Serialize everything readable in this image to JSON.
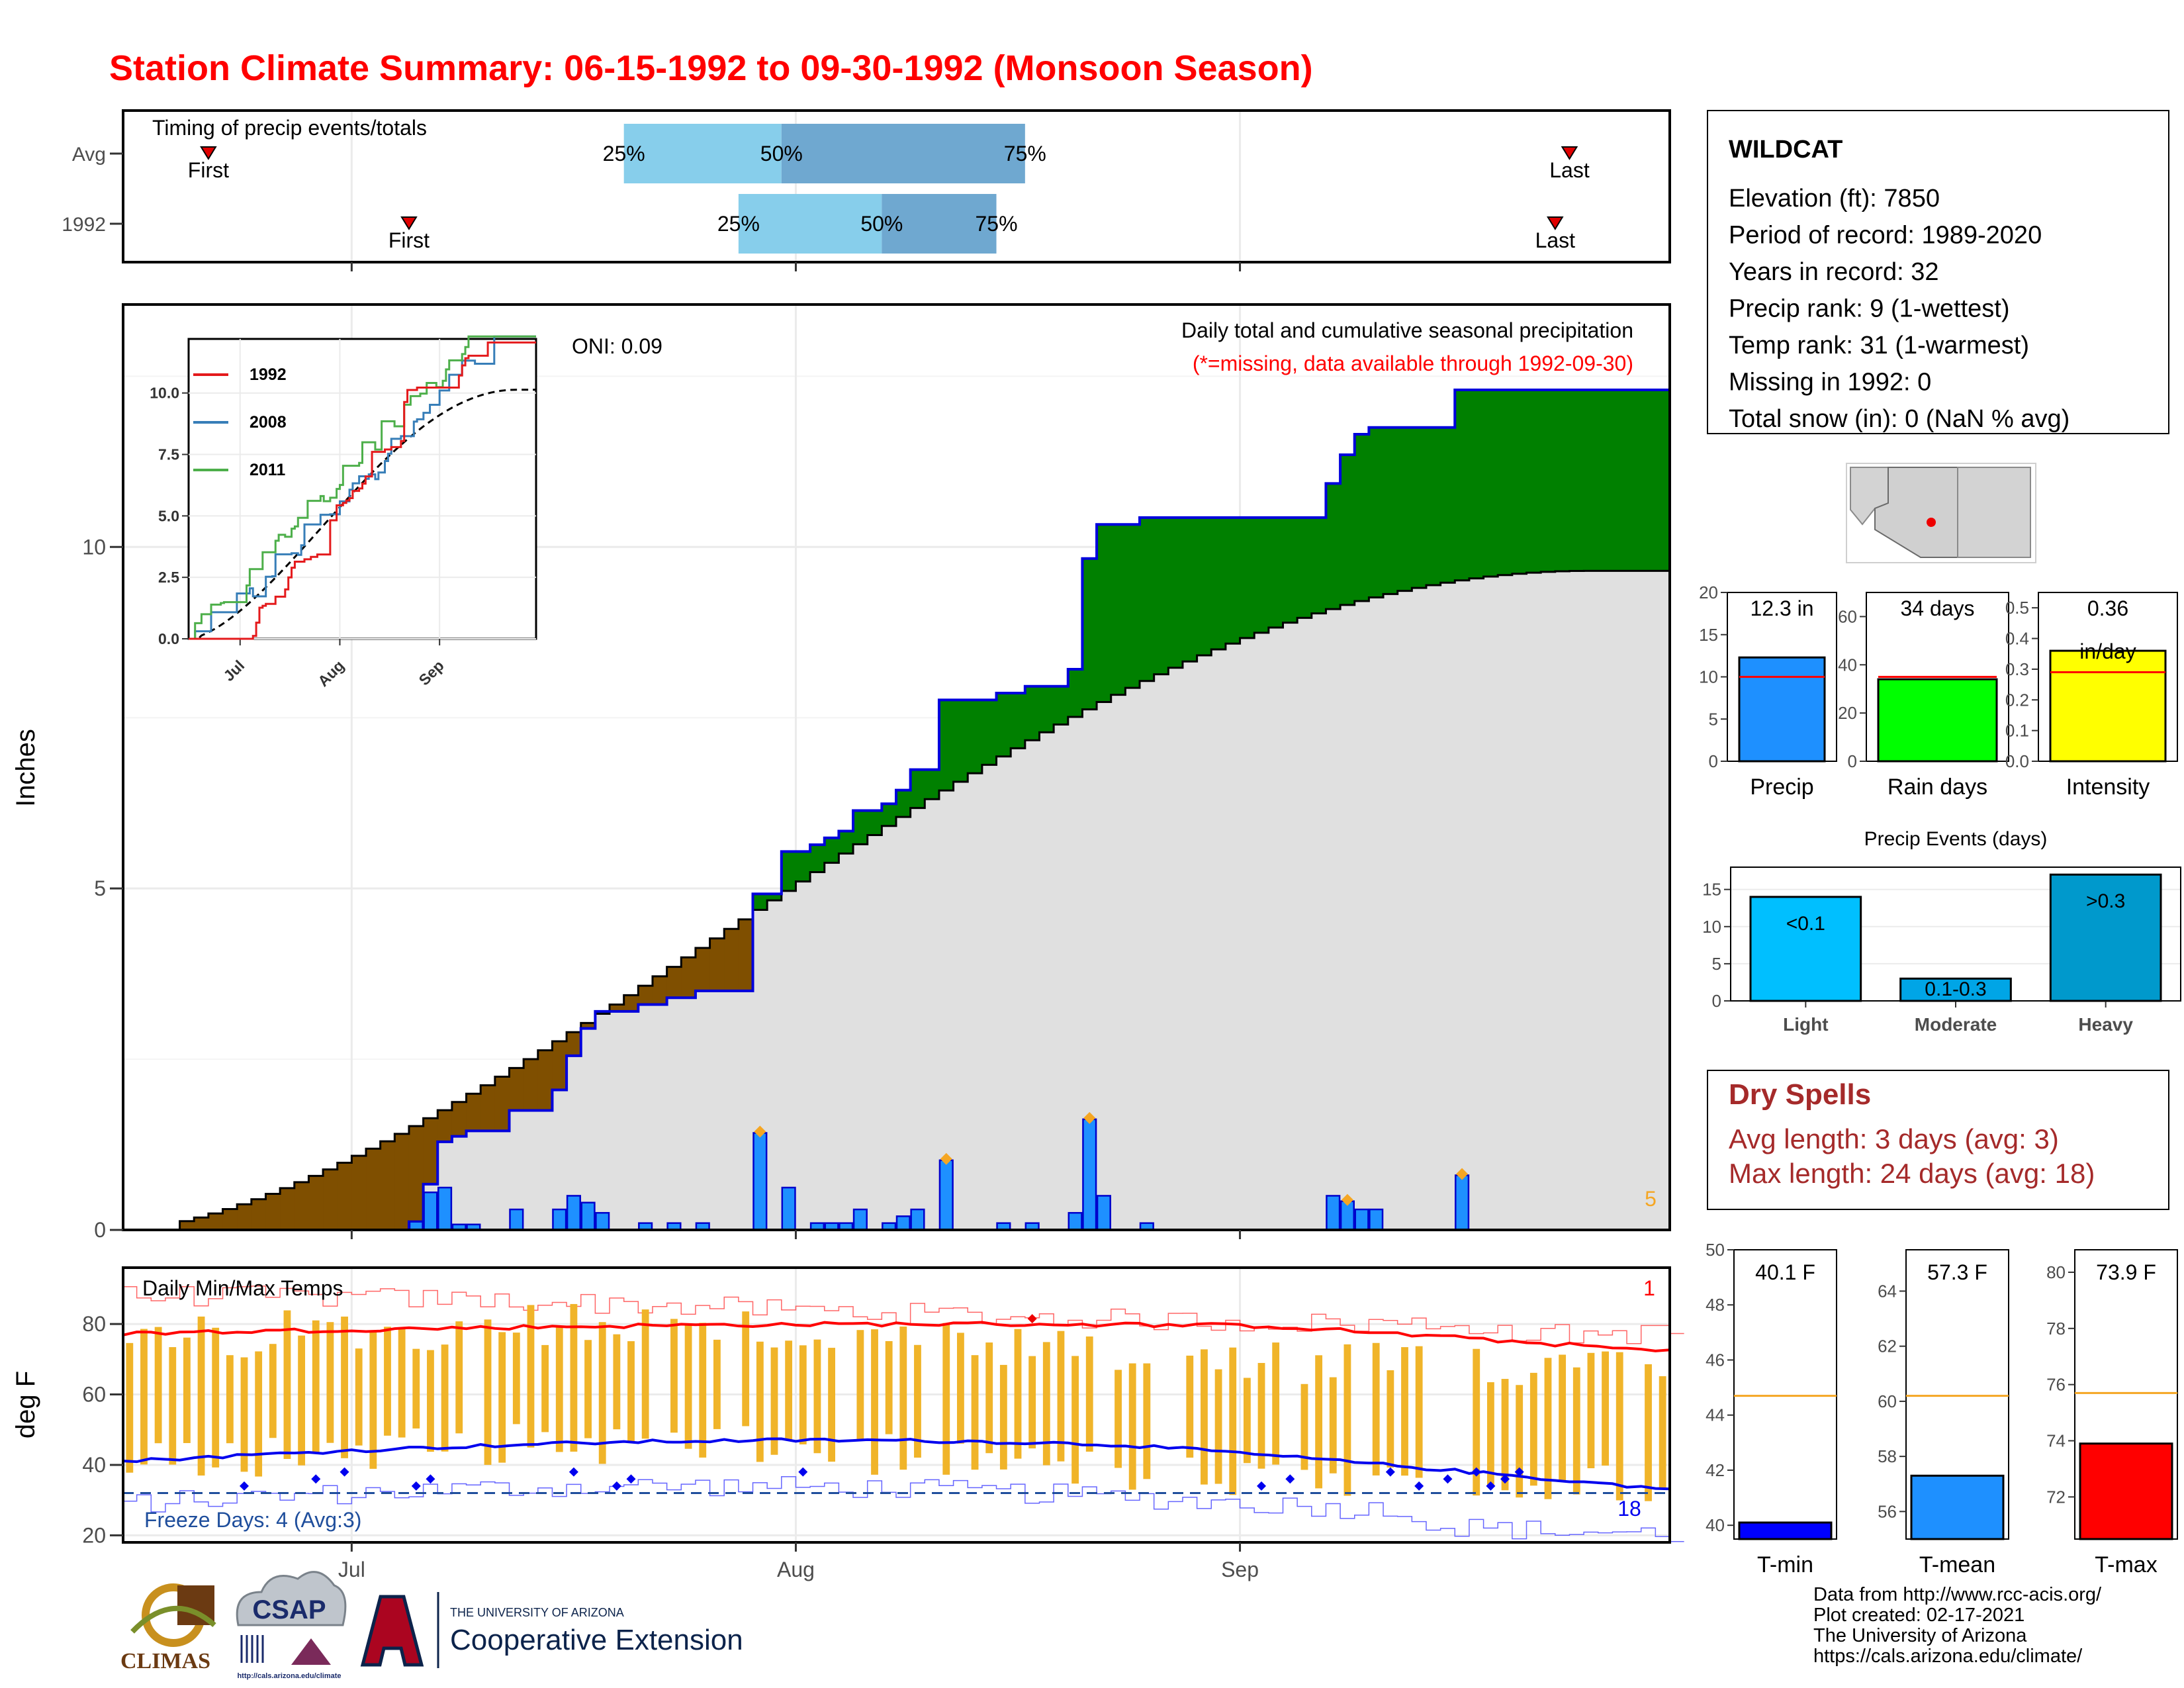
{
  "title": "Station Climate Summary: 06-15-1992 to 09-30-1992 (Monsoon Season)",
  "colors": {
    "title_red": "#ff0000",
    "light_blue": "#87ceeb",
    "mid_blue": "#6fa8d0",
    "brown": "#7f4f00",
    "green": "#008000",
    "gray_fill": "#e0e0e0",
    "bar_blue": "#1e90ff",
    "orange": "#f5a623",
    "dry_red": "#a52a2a"
  },
  "timing": {
    "label": "Timing of precip events/totals",
    "rows": [
      {
        "name": "Avg",
        "first": "First",
        "last": "Last",
        "p25": "25%",
        "p50": "50%",
        "p75": "75%",
        "first_date": "1992-06-21",
        "q25_date": "1992-07-20",
        "q50_date": "1992-07-31",
        "q75_date": "1992-08-17",
        "last_date": "1992-09-24"
      },
      {
        "name": "1992",
        "first": "First",
        "last": "Last",
        "p25": "25%",
        "p50": "50%",
        "p75": "75%",
        "first_date": "1992-07-05",
        "q25_date": "1992-07-28",
        "q50_date": "1992-08-07",
        "q75_date": "1992-08-15",
        "last_date": "1992-09-23"
      }
    ]
  },
  "main_chart": {
    "ylabel": "Inches",
    "yticks": [
      "0",
      "5",
      "10"
    ],
    "xticks": [
      "Jul",
      "Aug",
      "Sep"
    ],
    "oni": "ONI: 0.09",
    "label1": "Daily total and cumulative seasonal precipitation",
    "label2": "(*=missing, data available through 1992-09-30)",
    "extreme_count": "5"
  },
  "inset": {
    "yticks": [
      "0.0",
      "2.5",
      "5.0",
      "7.5",
      "10.0"
    ],
    "xticks": [
      "Jul",
      "Aug",
      "Sep"
    ],
    "legend": [
      {
        "name": "1992",
        "color": "#e41a1c"
      },
      {
        "name": "2008",
        "color": "#377eb8"
      },
      {
        "name": "2011",
        "color": "#4daf4a"
      }
    ]
  },
  "temp_chart": {
    "ylabel": "deg F",
    "label": "Daily Min/Max Temps",
    "yticks": [
      "20",
      "40",
      "60",
      "80"
    ],
    "freeze": "Freeze Days: 4 (Avg:3)",
    "max_count": "1",
    "min_count": "18"
  },
  "station": {
    "name": "WILDCAT",
    "lines": [
      "Elevation (ft): 7850",
      "Period of record: 1989-2020",
      "Years in record: 32",
      "Precip rank: 9 (1-wettest)",
      "Temp rank: 31 (1-warmest)",
      "Missing in 1992: 0",
      "Total snow (in): 0 (NaN % avg)"
    ]
  },
  "mini_bars": [
    {
      "label": "Precip",
      "value_text": "12.3 in",
      "value_line2": "",
      "yticks": [
        "0",
        "5",
        "10",
        "15",
        "20"
      ],
      "ymax": 20,
      "value": 12.3,
      "avg": 10.0,
      "color": "#1e90ff"
    },
    {
      "label": "Rain days",
      "value_text": "34 days",
      "value_line2": "",
      "yticks": [
        "0",
        "20",
        "40",
        "60"
      ],
      "ymax": 70,
      "value": 34,
      "avg": 35,
      "color": "#00ff00"
    },
    {
      "label": "Intensity",
      "value_text": "0.36",
      "value_line2": "in/day",
      "yticks": [
        "0.0",
        "0.1",
        "0.2",
        "0.3",
        "0.4",
        "0.5"
      ],
      "ymax": 0.55,
      "value": 0.36,
      "avg": 0.29,
      "color": "#ffff00"
    }
  ],
  "events": {
    "title": "Precip Events (days)",
    "yticks": [
      "0",
      "5",
      "10",
      "15"
    ],
    "categories": [
      "Light",
      "Moderate",
      "Heavy"
    ],
    "bar_labels": [
      "<0.1",
      "0.1-0.3",
      ">0.3"
    ],
    "values": [
      14,
      3,
      17
    ],
    "colors": [
      "#00bfff",
      "#00a5e6",
      "#0099cc"
    ]
  },
  "dry_spells": {
    "title": "Dry Spells",
    "avg": "Avg length: 3 days (avg: 3)",
    "max": "Max length: 24 days (avg: 18)"
  },
  "temp_bars": [
    {
      "label": "T-min",
      "value_text": "40.1 F",
      "yticks": [
        "40",
        "42",
        "44",
        "46",
        "48",
        "50"
      ],
      "ymin": 39.5,
      "ymax": 50,
      "value": 40.1,
      "avg": 44.7,
      "color": "#0000ff"
    },
    {
      "label": "T-mean",
      "value_text": "57.3 F",
      "yticks": [
        "56",
        "58",
        "60",
        "62",
        "64"
      ],
      "ymin": 55,
      "ymax": 65.5,
      "value": 57.3,
      "avg": 60.2,
      "color": "#1e90ff"
    },
    {
      "label": "T-max",
      "value_text": "73.9 F",
      "yticks": [
        "72",
        "74",
        "76",
        "78",
        "80"
      ],
      "ymin": 70.5,
      "ymax": 80.8,
      "value": 73.9,
      "avg": 75.7,
      "color": "#ff0000"
    }
  ],
  "footer": {
    "climas": "CLIMAS",
    "csap": "CSAP",
    "csap_url": "http://cals.arizona.edu/climate",
    "ua_small": "THE UNIVERSITY OF ARIZONA",
    "ua_big": "Cooperative Extension",
    "credits": [
      "Data from http://www.rcc-acis.org/",
      "Plot created: 02-17-2021",
      "The University of Arizona",
      "https://cals.arizona.edu/climate/"
    ]
  }
}
